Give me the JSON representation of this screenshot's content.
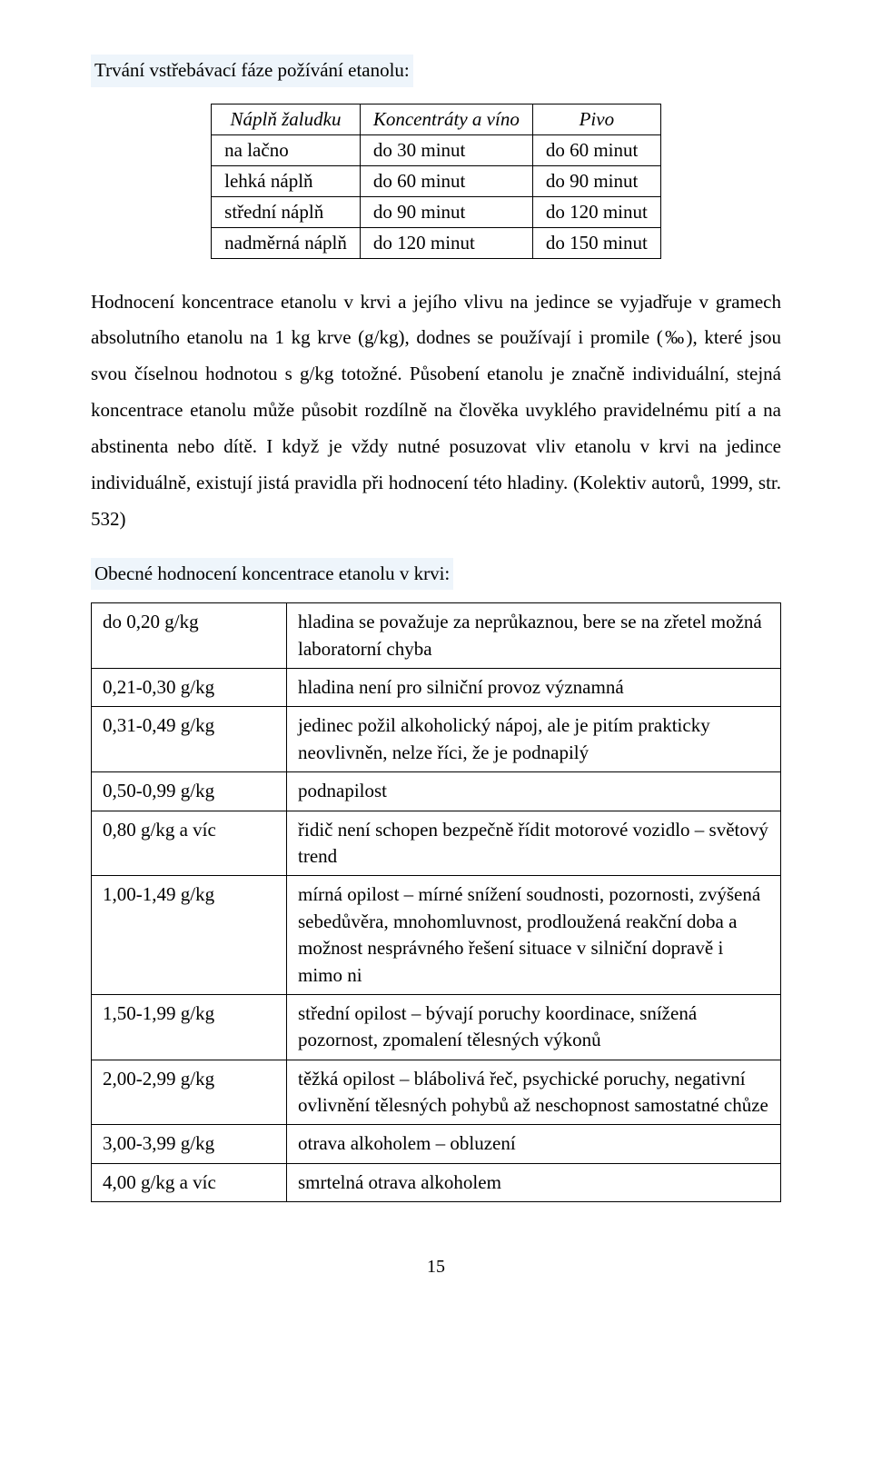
{
  "intro": "Trvání vstřebávací fáze požívání etanolu:",
  "table1": {
    "headers": [
      "Náplň žaludku",
      "Koncentráty a víno",
      "Pivo"
    ],
    "rows": [
      [
        "na lačno",
        "do 30 minut",
        "do 60 minut"
      ],
      [
        "lehká náplň",
        "do 60 minut",
        "do 90 minut"
      ],
      [
        "střední náplň",
        "do 90 minut",
        "do 120  minut"
      ],
      [
        "nadměrná náplň",
        "do 120 minut",
        "do 150 minut"
      ]
    ]
  },
  "paragraph": "Hodnocení koncentrace etanolu v krvi a jejího vlivu na jedince se vyjadřuje v gramech absolutního etanolu na 1 kg krve (g/kg), dodnes se používají i promile (‰), které jsou svou číselnou hodnotou s g/kg totožné. Působení etanolu je značně individuální, stejná koncentrace etanolu může působit rozdílně na člověka uvyklého pravidelnému pití a na abstinenta nebo dítě. I když je vždy nutné posuzovat vliv etanolu v krvi na jedince individuálně, existují jistá pravidla při hodnocení této hladiny. (Kolektiv autorů, 1999, str. 532)",
  "subhead": "Obecné hodnocení koncentrace etanolu v krvi:",
  "table2": {
    "rows": [
      [
        "do 0,20 g/kg",
        "hladina se považuje za neprůkaznou, bere se na zřetel možná laboratorní chyba"
      ],
      [
        "0,21-0,30 g/kg",
        "hladina není pro silniční provoz významná"
      ],
      [
        "0,31-0,49 g/kg",
        "jedinec požil alkoholický nápoj, ale je pitím prakticky neovlivněn, nelze říci, že je podnapilý"
      ],
      [
        "0,50-0,99 g/kg",
        "podnapilost"
      ],
      [
        "0,80 g/kg a víc",
        "řidič není schopen bezpečně řídit motorové vozidlo – světový trend"
      ],
      [
        "1,00-1,49 g/kg",
        "mírná opilost – mírné snížení soudnosti, pozornosti, zvýšená sebedůvěra, mnohomluvnost, prodloužená reakční doba a možnost nesprávného řešení situace v silniční dopravě i mimo ni"
      ],
      [
        "1,50-1,99 g/kg",
        "střední opilost – bývají poruchy koordinace, snížená pozornost, zpomalení tělesných výkonů"
      ],
      [
        "2,00-2,99 g/kg",
        "těžká opilost – blábolivá řeč, psychické poruchy, negativní ovlivnění tělesných pohybů až neschopnost samostatné chůze"
      ],
      [
        "3,00-3,99 g/kg",
        "otrava alkoholem – obluzení"
      ],
      [
        "4,00 g/kg a víc",
        "smrtelná otrava alkoholem"
      ]
    ]
  },
  "page_number": "15",
  "colors": {
    "highlight_bg": "#eef5fb",
    "border": "#000000",
    "text": "#000000",
    "page_bg": "#ffffff"
  },
  "fontsize_body_pt": 16
}
